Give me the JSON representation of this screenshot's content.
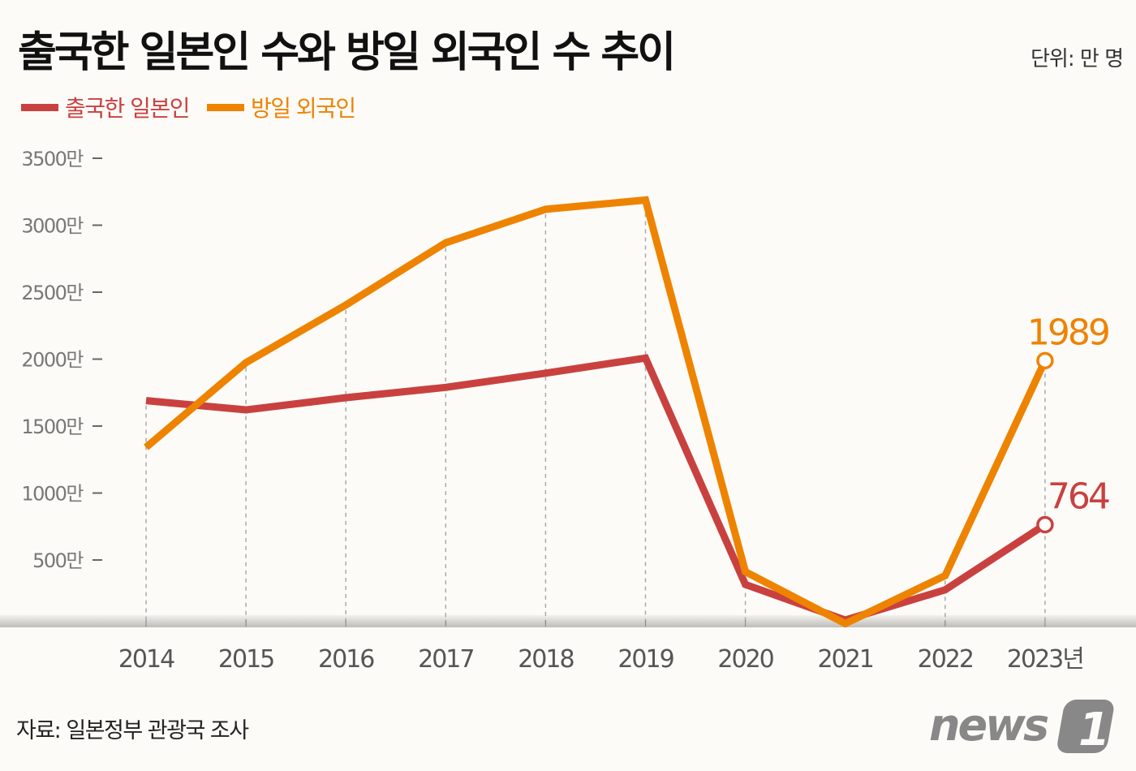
{
  "title": "출국한 일본인 수와 방일 외국인 수 추이",
  "unit": "단위: 만 명",
  "source": "자료: 일본정부 관광국 조사",
  "logo_text": "news1",
  "chart_data": {
    "type": "line",
    "title": "출국한 일본인 수와 방일 외국인 수 추이",
    "xlabel": "",
    "ylabel": "",
    "x": [
      "2014",
      "2015",
      "2016",
      "2017",
      "2018",
      "2019",
      "2020",
      "2021",
      "2022",
      "2023"
    ],
    "x_tick_labels": [
      "2014",
      "2015",
      "2016",
      "2017",
      "2018",
      "2019",
      "2020",
      "2021",
      "2022",
      "2023년"
    ],
    "y_ticks": [
      500,
      1000,
      1500,
      2000,
      2500,
      3000,
      3500
    ],
    "y_tick_labels": [
      "500만",
      "1000만",
      "1500만",
      "2000만",
      "2500만",
      "3000만",
      "3500만"
    ],
    "ylim": [
      0,
      3500
    ],
    "grid": "vertical dashed",
    "legend_position": "top-left",
    "series": [
      {
        "name": "출국한 일본인",
        "color": "#c9413f",
        "values": [
          1690,
          1621,
          1712,
          1789,
          1895,
          2008,
          317,
          51,
          277,
          764
        ],
        "end_label": "764"
      },
      {
        "name": "방일 외국인",
        "color": "#ee8300",
        "values": [
          1341,
          1974,
          2404,
          2869,
          3119,
          3188,
          412,
          25,
          383,
          1989
        ],
        "end_label": "1989"
      }
    ]
  }
}
